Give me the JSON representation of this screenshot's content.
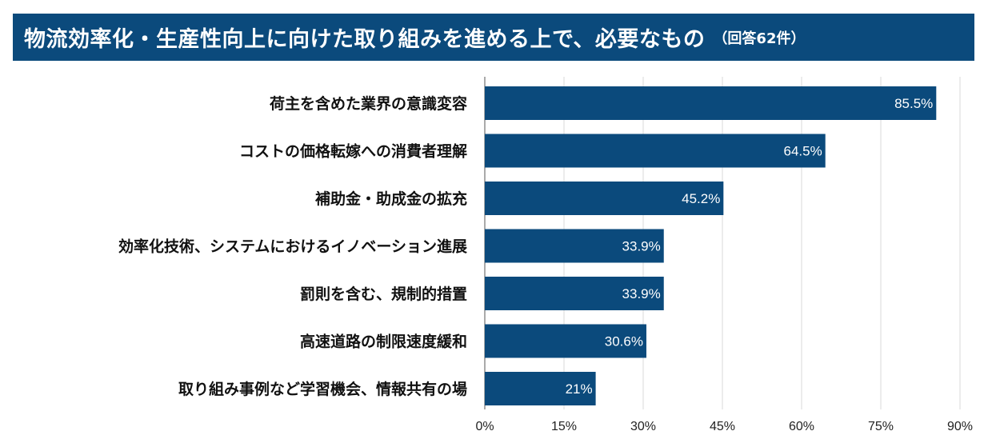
{
  "title": "物流効率化・生産性向上に向けた取り組みを進める上で、必要なもの",
  "subtitle": "（回答62件）",
  "colors": {
    "banner": "#0b4a7c",
    "bar": "#0b4a7c",
    "bar_label": "#ffffff",
    "category_label": "#111111",
    "tick_label": "#222222",
    "grid": "#d9d9d9"
  },
  "chart_data": {
    "type": "bar",
    "orientation": "horizontal",
    "categories": [
      "荷主を含めた業界の意識変容",
      "コストの価格転嫁への消費者理解",
      "補助金・助成金の拡充",
      "効率化技術、システムにおけるイノベーション進展",
      "罰則を含む、規制的措置",
      "高速道路の制限速度緩和",
      "取り組み事例など学習機会、情報共有の場"
    ],
    "values": [
      85.5,
      64.5,
      45.2,
      33.9,
      33.9,
      30.6,
      21
    ],
    "value_labels": [
      "85.5%",
      "64.5%",
      "45.2%",
      "33.9%",
      "33.9%",
      "30.6%",
      "21%"
    ],
    "xlim": [
      0,
      90
    ],
    "xticks": [
      0,
      15,
      30,
      45,
      60,
      75,
      90
    ],
    "xtick_labels": [
      "0%",
      "15%",
      "30%",
      "45%",
      "60%",
      "75%",
      "90%"
    ],
    "grid": true,
    "legend": "none"
  }
}
